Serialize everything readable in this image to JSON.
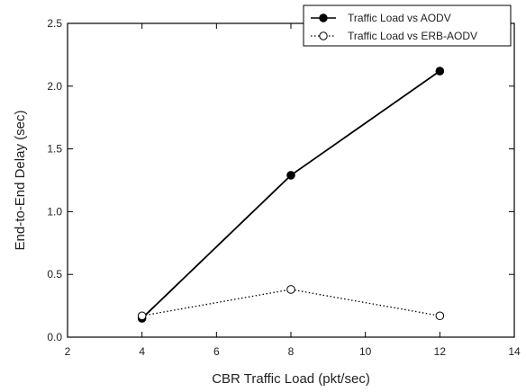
{
  "chart_data": {
    "type": "line",
    "title": "",
    "xlabel": "CBR Traffic Load (pkt/sec)",
    "ylabel": "End-to-End Delay (sec)",
    "xlim": [
      2,
      14
    ],
    "ylim": [
      0,
      2.5
    ],
    "xticks": [
      2,
      4,
      6,
      8,
      10,
      12,
      14
    ],
    "yticks": [
      0.0,
      0.5,
      1.0,
      1.5,
      2.0,
      2.5
    ],
    "ytick_labels": [
      "0.0",
      "0.5",
      "1.0",
      "1.5",
      "2.0",
      "2.5"
    ],
    "grid": false,
    "legend_position": "top-right",
    "series": [
      {
        "name": "Traffic Load vs AODV",
        "style": "solid",
        "marker": "filled-circle",
        "color": "#000000",
        "x": [
          4,
          8,
          12
        ],
        "y": [
          0.15,
          1.29,
          2.12
        ]
      },
      {
        "name": "Traffic Load vs ERB-AODV",
        "style": "dotted",
        "marker": "open-circle",
        "color": "#000000",
        "x": [
          4,
          8,
          12
        ],
        "y": [
          0.17,
          0.38,
          0.17
        ]
      }
    ]
  }
}
